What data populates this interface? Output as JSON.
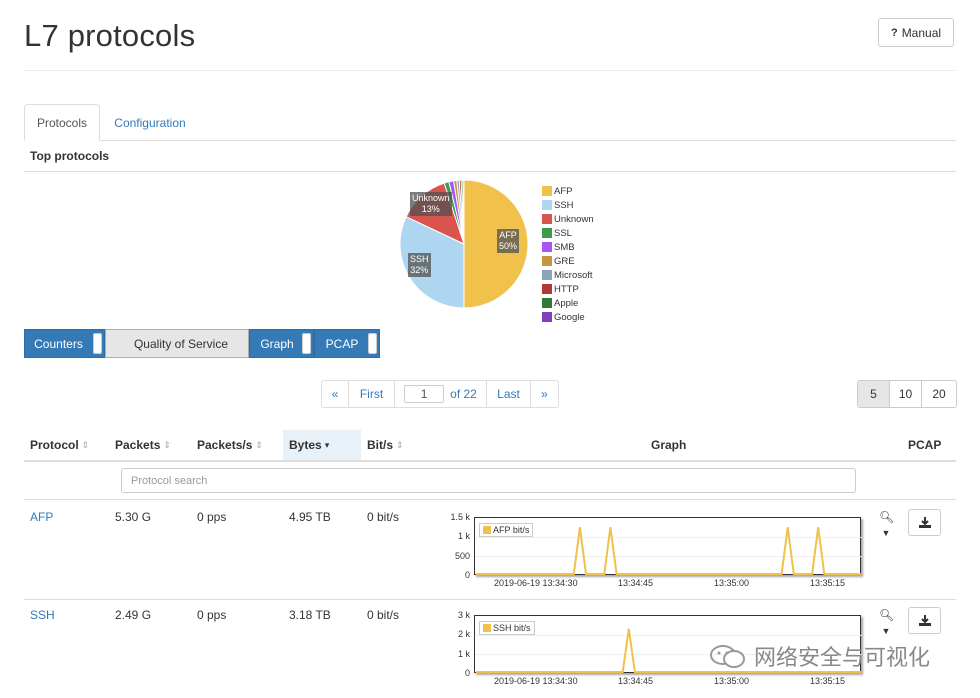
{
  "page": {
    "title": "L7 protocols",
    "manual_label": "Manual"
  },
  "tabs": [
    {
      "label": "Protocols",
      "active": true
    },
    {
      "label": "Configuration",
      "active": false
    }
  ],
  "section": {
    "title": "Top protocols"
  },
  "pie": {
    "labels": [
      {
        "name": "Unknown",
        "pct": "13%"
      },
      {
        "name": "AFP",
        "pct": "50%"
      },
      {
        "name": "SSH",
        "pct": "32%"
      }
    ],
    "slices": [
      {
        "name": "AFP",
        "value": 50,
        "color": "#f0c14b"
      },
      {
        "name": "SSH",
        "value": 32,
        "color": "#aed6f1"
      },
      {
        "name": "Unknown",
        "value": 13,
        "color": "#d9534f"
      },
      {
        "name": "SSL",
        "value": 1.2,
        "color": "#3a9d4a"
      },
      {
        "name": "SMB",
        "value": 1.2,
        "color": "#a855f7"
      },
      {
        "name": "GRE",
        "value": 0.8,
        "color": "#c8963e"
      },
      {
        "name": "Microsoft",
        "value": 0.6,
        "color": "#8aa4b8"
      },
      {
        "name": "HTTP",
        "value": 0.5,
        "color": "#b03a3a"
      },
      {
        "name": "Apple",
        "value": 0.4,
        "color": "#2e7d32"
      },
      {
        "name": "Google",
        "value": 0.3,
        "color": "#7e3fbf"
      }
    ],
    "legend": [
      "AFP",
      "SSH",
      "Unknown",
      "SSL",
      "SMB",
      "GRE",
      "Microsoft",
      "HTTP",
      "Apple",
      "Google"
    ]
  },
  "toggles": {
    "counters": "Counters",
    "qos": "Quality of Service",
    "graph": "Graph",
    "pcap": "PCAP"
  },
  "pager": {
    "prev": "«",
    "first": "First",
    "page": "1",
    "of": "of 22",
    "last": "Last",
    "next": "»"
  },
  "per_page": [
    "5",
    "10",
    "20"
  ],
  "table": {
    "headers": [
      "Protocol",
      "Packets",
      "Packets/s",
      "Bytes",
      "Bit/s",
      "Graph",
      "PCAP"
    ],
    "sort_icons": {
      "neutral": "⇕",
      "desc": "▾"
    },
    "search_placeholder": "Protocol search",
    "rows": [
      {
        "protocol": "AFP",
        "packets": "5.30 G",
        "packets_s": "0 pps",
        "bytes": "4.95 TB",
        "bits_s": "0 bit/s",
        "series_name": "AFP bit/s",
        "yticks": [
          "1.5 k",
          "1 k",
          "500",
          "0"
        ],
        "xticks": [
          "2019-06-19 13:34:30",
          "13:34:45",
          "13:35:00",
          "13:35:15"
        ]
      },
      {
        "protocol": "SSH",
        "packets": "2.49 G",
        "packets_s": "0 pps",
        "bytes": "3.18 TB",
        "bits_s": "0 bit/s",
        "series_name": "SSH bit/s",
        "yticks": [
          "3 k",
          "2 k",
          "1 k",
          "0"
        ],
        "xticks": [
          "2019-06-19 13:34:30",
          "13:34:45",
          "13:35:00",
          "13:35:15"
        ]
      }
    ]
  },
  "chart_data": [
    {
      "type": "line",
      "series": [
        {
          "name": "AFP bit/s",
          "color": "#f0c14b",
          "values": [
            0,
            0,
            0,
            0,
            0,
            0,
            0,
            0,
            0,
            0,
            0,
            0,
            0,
            0,
            0,
            0,
            0,
            1300,
            0,
            0,
            0,
            0,
            1300,
            0,
            0,
            0,
            0,
            0,
            0,
            0,
            0,
            0,
            0,
            0,
            0,
            0,
            0,
            0,
            0,
            0,
            0,
            0,
            0,
            0,
            0,
            0,
            0,
            0,
            0,
            0,
            0,
            1300,
            0,
            0,
            0,
            0,
            1300,
            0,
            0,
            0,
            0,
            0,
            0,
            0
          ]
        }
      ],
      "ylim": [
        0,
        1500
      ]
    },
    {
      "type": "line",
      "series": [
        {
          "name": "SSH bit/s",
          "color": "#f0c14b",
          "values": [
            0,
            0,
            0,
            0,
            0,
            0,
            0,
            0,
            0,
            0,
            0,
            0,
            0,
            0,
            0,
            0,
            0,
            0,
            0,
            0,
            0,
            0,
            0,
            0,
            0,
            2400,
            0,
            0,
            0,
            0,
            0,
            0,
            0,
            0,
            0,
            0,
            0,
            0,
            0,
            0,
            0,
            0,
            0,
            0,
            0,
            0,
            0,
            0,
            0,
            0,
            0,
            0,
            0,
            0,
            0,
            0,
            0,
            0,
            0,
            0,
            0,
            0,
            0,
            0
          ]
        }
      ],
      "ylim": [
        0,
        3000
      ]
    }
  ],
  "watermark": {
    "text": "网络安全与可视化"
  }
}
